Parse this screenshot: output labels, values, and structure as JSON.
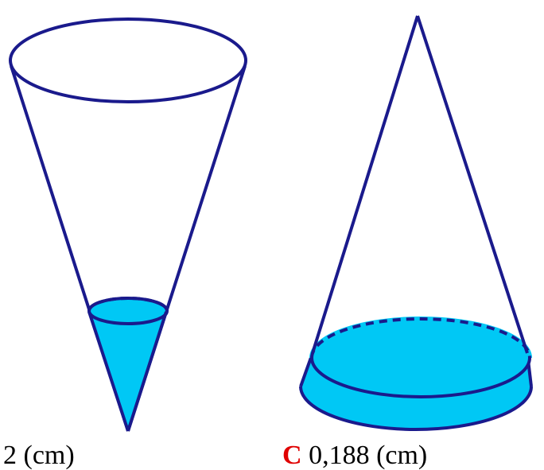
{
  "colors": {
    "outline": "#1a1a8c",
    "water": "#00c8f5",
    "choice_letter": "#e00000",
    "text": "#000000"
  },
  "figure": {
    "left_cone": {
      "orientation": "vertex-down",
      "contents": "water filled near the tip"
    },
    "right_cone": {
      "orientation": "vertex-up",
      "contents": "water filled at the base"
    }
  },
  "captions": {
    "left": "2 (cm)",
    "right_letter": "C",
    "right_value": "0,188 (cm)"
  }
}
